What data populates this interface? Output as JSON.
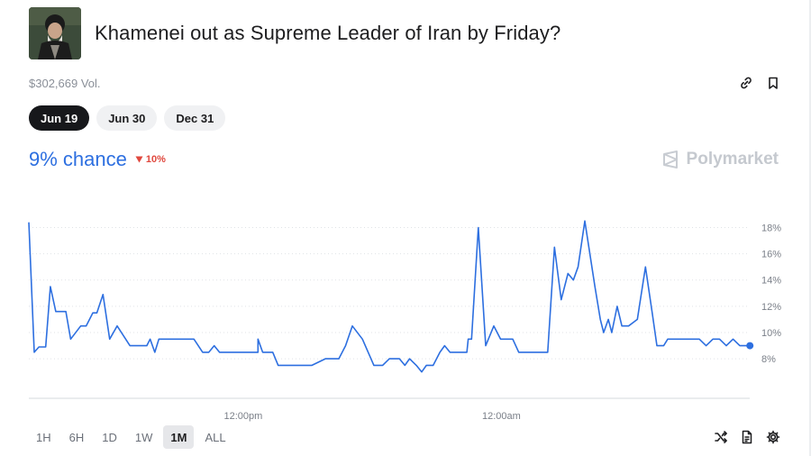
{
  "market": {
    "title": "Khamenei out as Supreme Leader of Iran by Friday?",
    "volume": "$302,669 Vol."
  },
  "date_tabs": [
    {
      "label": "Jun 19",
      "active": true
    },
    {
      "label": "Jun 30",
      "active": false
    },
    {
      "label": "Dec 31",
      "active": false
    }
  ],
  "chance": {
    "label": "9% chance",
    "delta": "10%",
    "delta_direction": "down"
  },
  "brand": "Polymarket",
  "range_tabs": [
    {
      "label": "1H",
      "active": false
    },
    {
      "label": "6H",
      "active": false
    },
    {
      "label": "1D",
      "active": false
    },
    {
      "label": "1W",
      "active": false
    },
    {
      "label": "1M",
      "active": true
    },
    {
      "label": "ALL",
      "active": false
    }
  ],
  "icons": {
    "link": "link-icon",
    "bookmark": "bookmark-icon",
    "shuffle": "shuffle-icon",
    "document": "document-icon",
    "settings": "gear-icon"
  },
  "colors": {
    "accent": "#2d6fe0",
    "down": "#e0483e"
  },
  "chart_data": {
    "type": "line",
    "title": "",
    "xlabel": "",
    "ylabel": "",
    "ylim": [
      6.5,
      19.2
    ],
    "y_ticks": [
      "18%",
      "16%",
      "14%",
      "12%",
      "10%",
      "8%"
    ],
    "y_tick_values": [
      18,
      16,
      14,
      12,
      10,
      8
    ],
    "x_ticks": [
      "12:00pm",
      "12:00am"
    ],
    "x_tick_positions": [
      0.313,
      0.69
    ],
    "grid": true,
    "series": [
      {
        "values": [
          [
            0.0,
            18.4
          ],
          [
            0.008,
            8.5
          ],
          [
            0.015,
            8.9
          ],
          [
            0.025,
            8.9
          ],
          [
            0.032,
            13.5
          ],
          [
            0.04,
            11.6
          ],
          [
            0.055,
            11.6
          ],
          [
            0.062,
            9.5
          ],
          [
            0.077,
            10.5
          ],
          [
            0.085,
            10.5
          ],
          [
            0.095,
            11.5
          ],
          [
            0.101,
            11.5
          ],
          [
            0.11,
            12.9
          ],
          [
            0.12,
            9.5
          ],
          [
            0.131,
            10.5
          ],
          [
            0.15,
            9.0
          ],
          [
            0.175,
            9.0
          ],
          [
            0.18,
            9.5
          ],
          [
            0.187,
            8.5
          ],
          [
            0.193,
            9.5
          ],
          [
            0.245,
            9.5
          ],
          [
            0.258,
            8.5
          ],
          [
            0.267,
            8.5
          ],
          [
            0.275,
            9.0
          ],
          [
            0.283,
            8.5
          ],
          [
            0.34,
            8.5
          ],
          [
            0.34,
            9.5
          ],
          [
            0.347,
            8.5
          ],
          [
            0.362,
            8.5
          ],
          [
            0.37,
            7.5
          ],
          [
            0.42,
            7.5
          ],
          [
            0.44,
            8.0
          ],
          [
            0.46,
            8.0
          ],
          [
            0.47,
            9.0
          ],
          [
            0.48,
            10.5
          ],
          [
            0.495,
            9.5
          ],
          [
            0.512,
            7.5
          ],
          [
            0.525,
            7.5
          ],
          [
            0.535,
            8.0
          ],
          [
            0.55,
            8.0
          ],
          [
            0.558,
            7.5
          ],
          [
            0.565,
            8.0
          ],
          [
            0.575,
            7.5
          ],
          [
            0.583,
            7.0
          ],
          [
            0.59,
            7.5
          ],
          [
            0.6,
            7.5
          ],
          [
            0.61,
            8.5
          ],
          [
            0.617,
            9.0
          ],
          [
            0.625,
            8.5
          ],
          [
            0.65,
            8.5
          ],
          [
            0.652,
            9.5
          ],
          [
            0.657,
            9.5
          ],
          [
            0.667,
            18.0
          ],
          [
            0.678,
            9.0
          ],
          [
            0.69,
            10.5
          ],
          [
            0.7,
            9.5
          ],
          [
            0.718,
            9.5
          ],
          [
            0.727,
            8.5
          ],
          [
            0.77,
            8.5
          ],
          [
            0.78,
            16.5
          ],
          [
            0.79,
            12.5
          ],
          [
            0.8,
            14.5
          ],
          [
            0.808,
            14.0
          ],
          [
            0.815,
            15.0
          ],
          [
            0.825,
            18.5
          ],
          [
            0.84,
            13.5
          ],
          [
            0.848,
            11.0
          ],
          [
            0.853,
            10.0
          ],
          [
            0.86,
            11.0
          ],
          [
            0.865,
            10.0
          ],
          [
            0.873,
            12.0
          ],
          [
            0.88,
            10.5
          ],
          [
            0.89,
            10.5
          ],
          [
            0.903,
            11.0
          ],
          [
            0.915,
            15.0
          ],
          [
            0.925,
            11.5
          ],
          [
            0.932,
            9.0
          ],
          [
            0.942,
            9.0
          ],
          [
            0.948,
            9.5
          ],
          [
            0.995,
            9.5
          ],
          [
            1.005,
            9.0
          ],
          [
            1.015,
            9.5
          ],
          [
            1.025,
            9.5
          ],
          [
            1.035,
            9.0
          ],
          [
            1.045,
            9.5
          ],
          [
            1.055,
            9.0
          ],
          [
            1.07,
            9.0
          ]
        ]
      }
    ],
    "end_value": 9
  }
}
